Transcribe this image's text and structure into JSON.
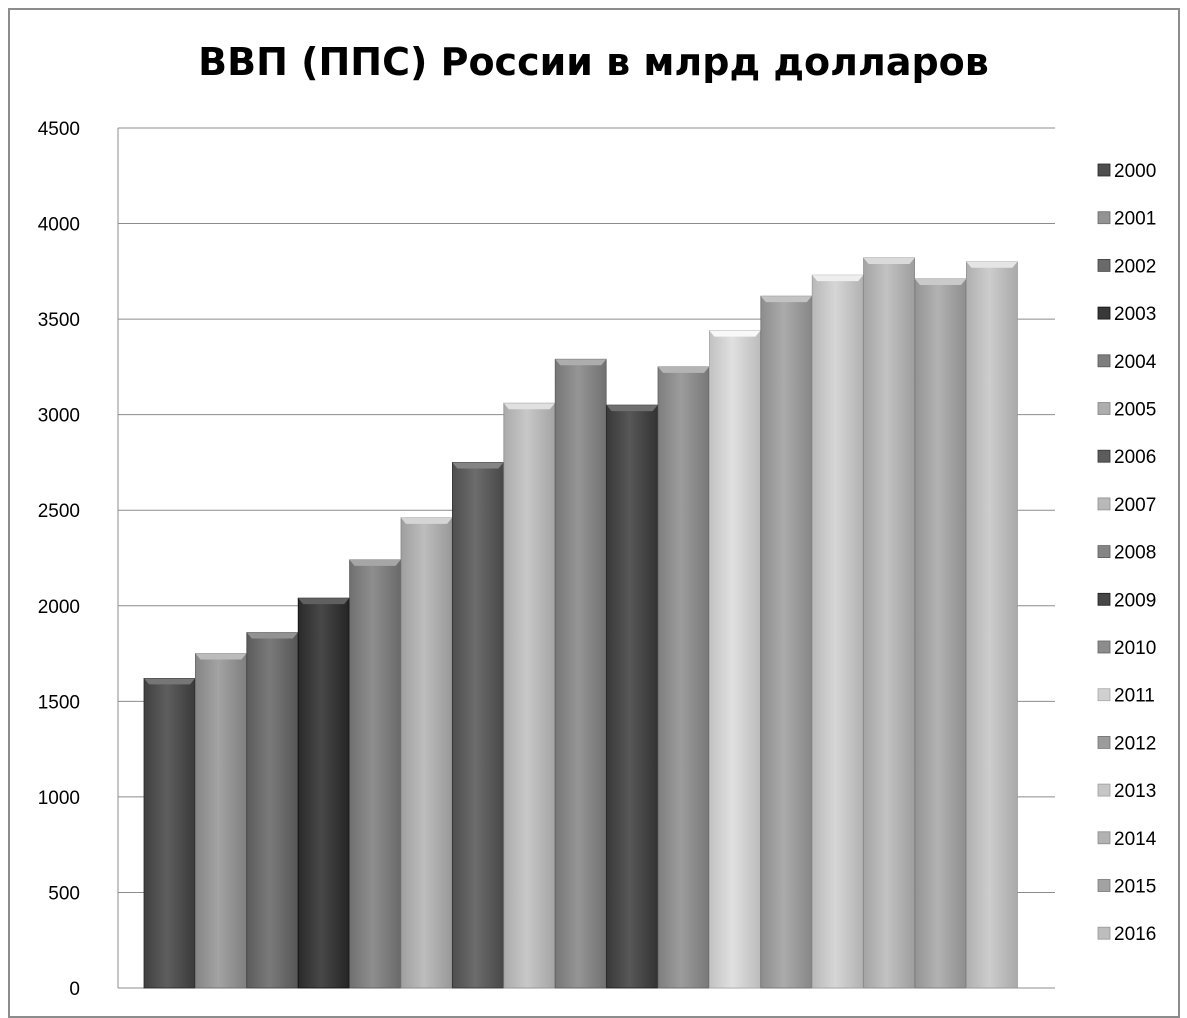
{
  "chart_data": {
    "type": "bar",
    "title": "ВВП (ППС) России в млрд долларов",
    "xlabel": "",
    "ylabel": "",
    "ylim": [
      0,
      4500
    ],
    "yticks": [
      0,
      500,
      1000,
      1500,
      2000,
      2500,
      3000,
      3500,
      4000,
      4500
    ],
    "grid": true,
    "legend_position": "right",
    "series": [
      {
        "name": "2000",
        "value": 1620,
        "color": "#4e4e4e"
      },
      {
        "name": "2001",
        "value": 1750,
        "color": "#939393"
      },
      {
        "name": "2002",
        "value": 1860,
        "color": "#6a6a6a"
      },
      {
        "name": "2003",
        "value": 2040,
        "color": "#383838"
      },
      {
        "name": "2004",
        "value": 2240,
        "color": "#7e7e7e"
      },
      {
        "name": "2005",
        "value": 2460,
        "color": "#adadad"
      },
      {
        "name": "2006",
        "value": 2750,
        "color": "#5c5c5c"
      },
      {
        "name": "2007",
        "value": 3060,
        "color": "#b8b8b8"
      },
      {
        "name": "2008",
        "value": 3290,
        "color": "#858585"
      },
      {
        "name": "2009",
        "value": 3050,
        "color": "#474747"
      },
      {
        "name": "2010",
        "value": 3250,
        "color": "#8c8c8c"
      },
      {
        "name": "2011",
        "value": 3440,
        "color": "#d0d0d0"
      },
      {
        "name": "2012",
        "value": 3620,
        "color": "#9b9b9b"
      },
      {
        "name": "2013",
        "value": 3730,
        "color": "#c6c6c6"
      },
      {
        "name": "2014",
        "value": 3820,
        "color": "#b2b2b2"
      },
      {
        "name": "2015",
        "value": 3710,
        "color": "#a2a2a2"
      },
      {
        "name": "2016",
        "value": 3800,
        "color": "#bdbdbd"
      }
    ]
  }
}
